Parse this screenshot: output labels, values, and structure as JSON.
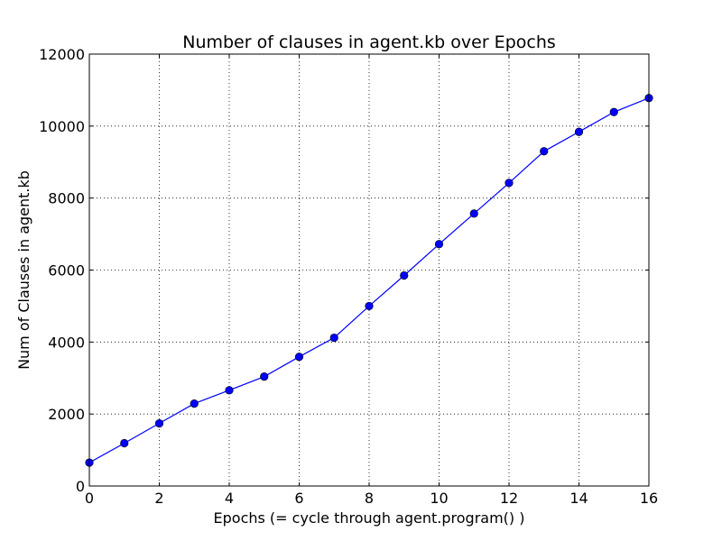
{
  "chart_data": {
    "type": "line",
    "title": "Number of clauses in agent.kb over Epochs",
    "xlabel": "Epochs (= cycle through agent.program() )",
    "ylabel": "Num of Clauses in agent.kb",
    "xlim": [
      0,
      16
    ],
    "ylim": [
      0,
      12000
    ],
    "xticks": [
      0,
      2,
      4,
      6,
      8,
      10,
      12,
      14,
      16
    ],
    "yticks": [
      0,
      2000,
      4000,
      6000,
      8000,
      10000,
      12000
    ],
    "grid": true,
    "series": [
      {
        "color": "#0000ff",
        "x": [
          0,
          1,
          2,
          3,
          4,
          5,
          6,
          7,
          8,
          9,
          10,
          11,
          12,
          13,
          14,
          15,
          16
        ],
        "y": [
          650,
          1190,
          1740,
          2290,
          2660,
          3040,
          3590,
          4120,
          5000,
          5850,
          6720,
          7570,
          8420,
          9300,
          9840,
          10390,
          10780
        ]
      }
    ]
  }
}
